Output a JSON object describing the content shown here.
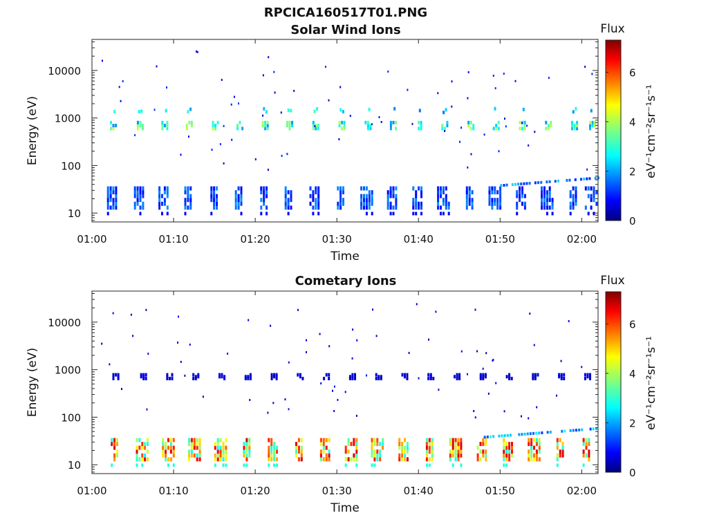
{
  "figure_title": "RPCICA160517T01.PNG",
  "colors": {
    "colormap": [
      "#00007f",
      "#0000ff",
      "#007fff",
      "#00ffff",
      "#7fff7f",
      "#ffff00",
      "#ff7f00",
      "#ff0000",
      "#7f0000"
    ]
  },
  "chart_data": [
    {
      "type": "heatmap",
      "title": "Solar Wind Ions",
      "xlabel": "Time",
      "ylabel": "Energy (eV)",
      "x_ticks": [
        "01:00",
        "01:10",
        "01:20",
        "01:30",
        "01:40",
        "01:50",
        "02:00"
      ],
      "x_tick_minutes": [
        0,
        10,
        20,
        30,
        40,
        50,
        60
      ],
      "xlim_minutes": [
        0,
        62
      ],
      "y_scale": "log",
      "y_ticks": [
        "10",
        "100",
        "1000",
        "10000"
      ],
      "y_tick_values": [
        10,
        100,
        1000,
        10000
      ],
      "ylim": [
        6.5,
        45000
      ],
      "colorbar": {
        "label": "Flux",
        "unit_label": "eV⁻¹cm⁻²sr⁻¹s⁻¹",
        "ticks": [
          "0",
          "2",
          "4",
          "6"
        ],
        "tick_values": [
          0,
          2,
          4,
          6
        ],
        "range": [
          0,
          7.3
        ]
      },
      "burst_times_minutes": [
        2.5,
        5.8,
        8.8,
        11.8,
        15.0,
        18.0,
        21.1,
        24.1,
        27.3,
        30.5,
        33.7,
        36.8,
        39.9,
        43.1,
        46.3,
        49.4,
        52.6,
        55.8,
        59.0,
        61.2
      ],
      "low_band": {
        "energy_range": [
          13,
          33
        ],
        "flux_level": 1.5
      },
      "mid_band": {
        "energy_range": [
          600,
          800
        ],
        "flux_level": 3.2
      },
      "upper_band": {
        "energy_range": [
          1300,
          1600
        ],
        "flux_level": 2.8
      },
      "drift_band": {
        "minutes": [
          50,
          62
        ],
        "energy_range": [
          38,
          55
        ],
        "flux_level": 1.8
      },
      "scatter_flux_level": 1.0
    },
    {
      "type": "heatmap",
      "title": "Cometary Ions",
      "xlabel": "Time",
      "ylabel": "Energy (eV)",
      "x_ticks": [
        "01:00",
        "01:10",
        "01:20",
        "01:30",
        "01:40",
        "01:50",
        "02:00"
      ],
      "x_tick_minutes": [
        0,
        10,
        20,
        30,
        40,
        50,
        60
      ],
      "xlim_minutes": [
        0,
        62
      ],
      "y_scale": "log",
      "y_ticks": [
        "10",
        "100",
        "1000",
        "10000"
      ],
      "y_tick_values": [
        10,
        100,
        1000,
        10000
      ],
      "ylim": [
        6.5,
        45000
      ],
      "colorbar": {
        "label": "Flux",
        "unit_label": "eV⁻¹cm⁻²sr⁻¹s⁻¹",
        "ticks": [
          "0",
          "2",
          "4",
          "6"
        ],
        "tick_values": [
          0,
          2,
          4,
          6
        ],
        "range": [
          0,
          7.3
        ]
      },
      "burst_times_minutes": [
        2.8,
        6.2,
        9.4,
        12.6,
        15.8,
        19.0,
        22.2,
        25.4,
        28.6,
        31.8,
        35.0,
        38.2,
        41.4,
        44.6,
        47.8,
        51.0,
        54.2,
        57.4,
        60.6
      ],
      "low_band": {
        "energy_range": [
          13,
          33
        ],
        "flux_level": 5.0
      },
      "mid_band": {
        "energy_range": [
          650,
          780
        ],
        "flux_level": 0.6
      },
      "drift_band": {
        "minutes": [
          48,
          62
        ],
        "energy_range": [
          38,
          58
        ],
        "flux_level": 2.2
      },
      "scatter_flux_level": 0.8
    }
  ]
}
